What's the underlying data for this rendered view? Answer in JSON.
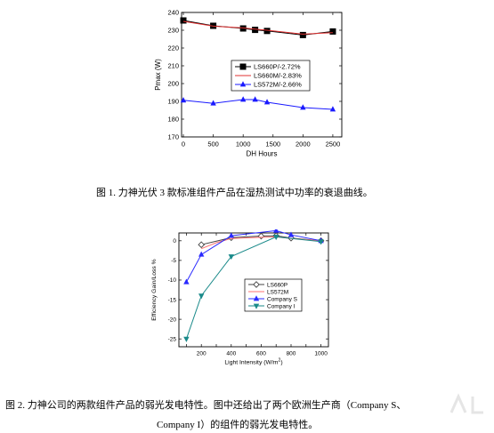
{
  "captions": {
    "fig1": "图 1. 力神光伏 3 款标准组件产品在湿热测试中功率的衰退曲线。",
    "fig2_line1": "图 2. 力神公司的两款组件产品的弱光发电特性。图中还给出了两个欧洲生产商（Company S、",
    "fig2_line2": "Company I）的组件的弱光发电特性。"
  },
  "chart_data": [
    {
      "type": "line",
      "xlabel": "DH Hours",
      "ylabel": "Pmax (W)",
      "xlim": [
        -30,
        2650
      ],
      "ylim": [
        170,
        240
      ],
      "xticks": [
        0,
        500,
        1000,
        1500,
        2000,
        2500
      ],
      "yticks": [
        170,
        180,
        190,
        200,
        210,
        220,
        230,
        240
      ],
      "legend_position": "middle-right",
      "series": [
        {
          "name": "LS660P/-2.72%",
          "color": "#000000",
          "marker": "square-filled",
          "x": [
            0,
            500,
            1000,
            1200,
            1400,
            2000,
            2500
          ],
          "y": [
            235.5,
            232.5,
            231.0,
            230.2,
            229.6,
            227.3,
            229.3
          ]
        },
        {
          "name": "LS660M/-2.83%",
          "color": "#e03030",
          "marker": "none",
          "x": [
            0,
            500,
            1000,
            1200,
            1400,
            2000,
            2500
          ],
          "y": [
            235.0,
            232.3,
            231.3,
            230.6,
            230.0,
            227.8,
            228.6
          ]
        },
        {
          "name": "LS572M/-2.66%",
          "color": "#1a1aff",
          "marker": "triangle-filled",
          "x": [
            0,
            500,
            1000,
            1200,
            1400,
            2000,
            2500
          ],
          "y": [
            190.6,
            188.9,
            191.0,
            191.0,
            189.5,
            186.5,
            185.5
          ]
        }
      ]
    },
    {
      "type": "line",
      "xlabel": "Light Intensity  (W/m",
      "xlabel_sup": "2",
      "xlabel_close": ")",
      "ylabel": "Efficiency Gain/Loss %",
      "xlim": [
        50,
        1050
      ],
      "ylim": [
        -27,
        2
      ],
      "xticks": [
        100,
        200,
        300,
        400,
        500,
        600,
        700,
        800,
        900,
        1000
      ],
      "yticks": [
        0,
        -5,
        -10,
        -15,
        -20,
        -25
      ],
      "legend_position": "middle-right",
      "series": [
        {
          "name": "LS660P",
          "color": "#444444",
          "marker": "diamond-open",
          "x": [
            200,
            400,
            600,
            700,
            800,
            1000
          ],
          "y": [
            -1.0,
            0.8,
            1.2,
            1.3,
            0.7,
            0.0
          ]
        },
        {
          "name": "LS572M",
          "color": "#ff7070",
          "marker": "none",
          "x": [
            200,
            300,
            400,
            600,
            700,
            800,
            1000
          ],
          "y": [
            -2.0,
            -0.5,
            0.6,
            0.9,
            1.0,
            0.6,
            0.0
          ]
        },
        {
          "name": "Company S",
          "color": "#2a2aff",
          "marker": "triangle-filled",
          "x": [
            100,
            200,
            400,
            700,
            800,
            1000
          ],
          "y": [
            -10.5,
            -3.5,
            1.3,
            2.6,
            1.5,
            0.0
          ]
        },
        {
          "name": "Company I",
          "color": "#1a8a8a",
          "marker": "triangle-down-filled",
          "x": [
            100,
            200,
            400,
            700,
            1000
          ],
          "y": [
            -25.0,
            -14.0,
            -4.0,
            1.0,
            -0.2
          ]
        }
      ]
    }
  ]
}
